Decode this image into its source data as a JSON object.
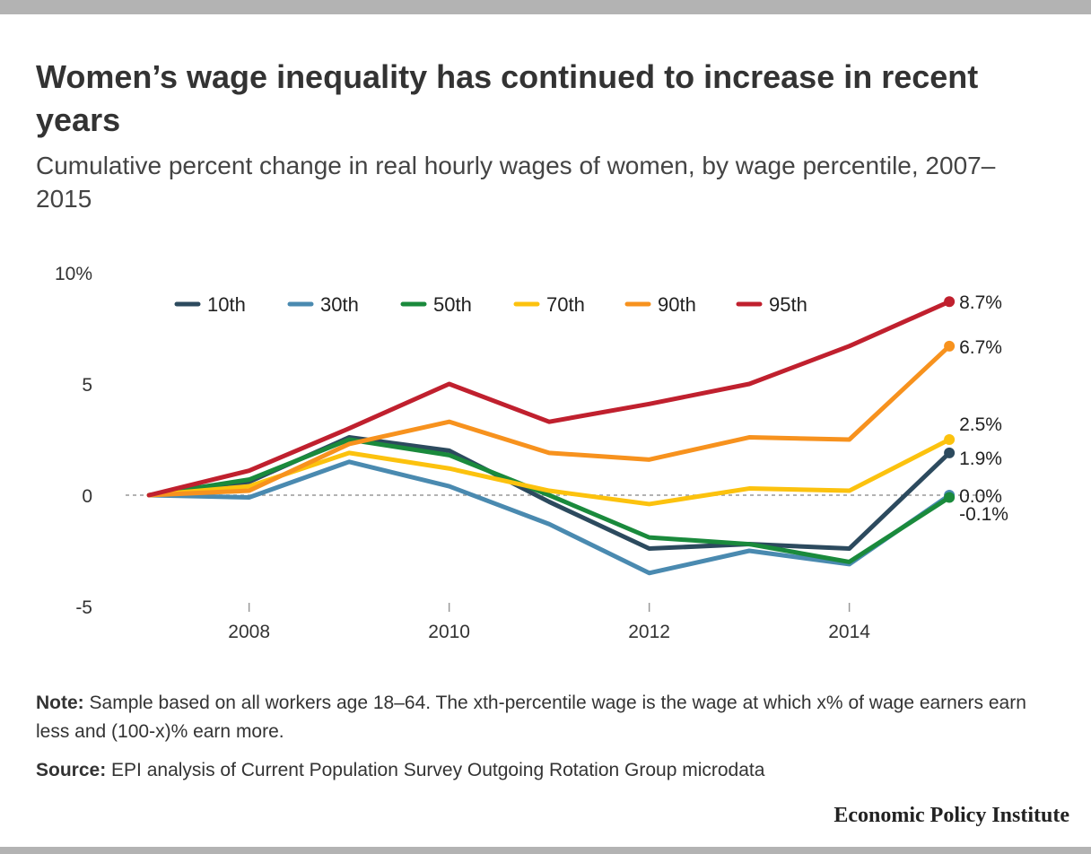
{
  "header": {
    "title": "Women’s wage inequality has continued to increase in recent years",
    "subtitle": "Cumulative percent change in real hourly wages of women, by wage percentile, 2007–2015"
  },
  "footer": {
    "note_label": "Note:",
    "note_text": "Sample based on all workers age 18–64. The xth-percentile wage is the wage at which x% of wage earners earn less and (100-x)% earn more.",
    "source_label": "Source:",
    "source_text": "EPI analysis of Current Population Survey Outgoing Rotation Group microdata",
    "brand": "Economic Policy Institute"
  },
  "chart_data": {
    "type": "line",
    "title": "Women’s wage inequality has continued to increase in recent years",
    "subtitle": "Cumulative percent change in real hourly wages of women, by wage percentile, 2007–2015",
    "xlabel": "",
    "ylabel": "",
    "x": [
      2007,
      2008,
      2009,
      2010,
      2011,
      2012,
      2013,
      2014,
      2015
    ],
    "xlim": [
      2006.9,
      2015.6
    ],
    "ylim": [
      -5,
      10
    ],
    "x_ticks": [
      2008,
      2010,
      2012,
      2014
    ],
    "x_tick_labels": [
      "2008",
      "2010",
      "2012",
      "2014"
    ],
    "y_ticks": [
      10,
      5,
      0,
      -5
    ],
    "y_tick_labels": [
      "10%",
      "5",
      "0",
      "-5"
    ],
    "zero_line": "dashed",
    "grid": false,
    "legend": "top",
    "series": [
      {
        "name": "10th",
        "color": "#2c4a5e",
        "values": [
          0,
          0.6,
          2.6,
          2.0,
          -0.3,
          -2.4,
          -2.2,
          -2.4,
          1.9
        ],
        "end_label": "1.9%"
      },
      {
        "name": "30th",
        "color": "#4a8ab0",
        "values": [
          0,
          -0.1,
          1.5,
          0.4,
          -1.3,
          -3.5,
          -2.5,
          -3.1,
          0.0
        ],
        "end_label": "0.0%"
      },
      {
        "name": "50th",
        "color": "#1a8a3c",
        "values": [
          0,
          0.7,
          2.5,
          1.8,
          0.0,
          -1.9,
          -2.2,
          -3.0,
          -0.1
        ],
        "end_label": "-0.1%"
      },
      {
        "name": "70th",
        "color": "#fcc20e",
        "values": [
          0,
          0.4,
          1.9,
          1.2,
          0.2,
          -0.4,
          0.3,
          0.2,
          2.5
        ],
        "end_label": "2.5%"
      },
      {
        "name": "90th",
        "color": "#f7921e",
        "values": [
          0,
          0.2,
          2.3,
          3.3,
          1.9,
          1.6,
          2.6,
          2.5,
          6.7
        ],
        "end_label": "6.7%"
      },
      {
        "name": "95th",
        "color": "#c0202e",
        "values": [
          0,
          1.1,
          3.0,
          5.0,
          3.3,
          4.1,
          5.0,
          6.7,
          8.7
        ],
        "end_label": "8.7%"
      }
    ]
  }
}
